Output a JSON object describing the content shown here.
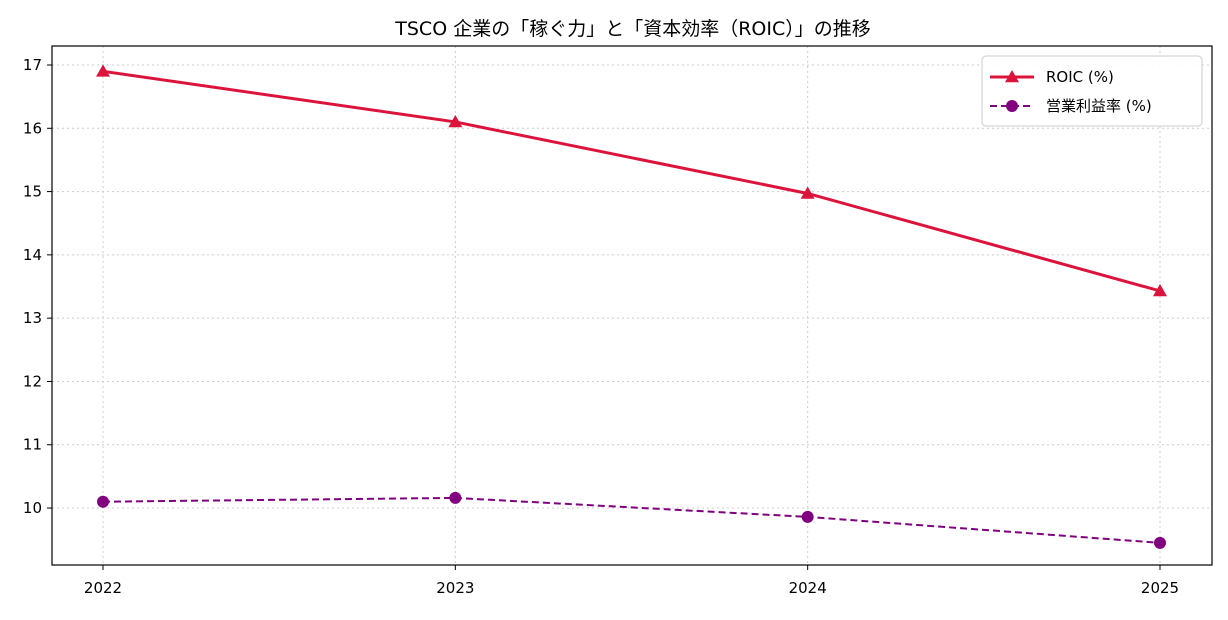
{
  "chart_data": {
    "type": "line",
    "title": "TSCO 企業の「稼ぐ力」と「資本効率（ROIC）」の推移",
    "xlabel": "",
    "ylabel": "",
    "categories": [
      "2022",
      "2023",
      "2024",
      "2025"
    ],
    "ylim": [
      9.1,
      17.3
    ],
    "yticks": [
      "10",
      "11",
      "12",
      "13",
      "14",
      "15",
      "16",
      "17"
    ],
    "grid": true,
    "legend_position": "top-right",
    "series": [
      {
        "name": "ROIC (%)",
        "values": [
          16.9,
          16.1,
          14.97,
          13.43
        ],
        "color": "#dc143c",
        "marker": "triangle",
        "line_style": "solid"
      },
      {
        "name": "営業利益率 (%)",
        "values": [
          10.1,
          10.16,
          9.86,
          9.45
        ],
        "color": "#800080",
        "marker": "circle",
        "line_style": "dashed"
      }
    ]
  }
}
